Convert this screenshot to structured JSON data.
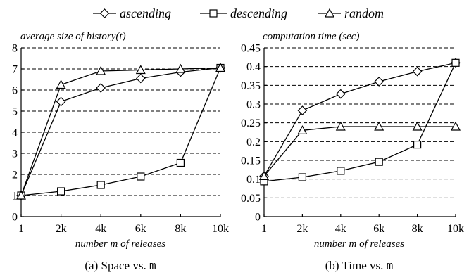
{
  "legend": [
    {
      "name": "ascending",
      "marker": "diamond"
    },
    {
      "name": "descending",
      "marker": "square"
    },
    {
      "name": "random",
      "marker": "triangle"
    }
  ],
  "chart_data": [
    {
      "type": "line",
      "caption_prefix": "(a) Space vs. ",
      "caption_var": "m",
      "ylabel_prefix": "average size of history(",
      "ylabel_var": "t",
      "ylabel_suffix": ")",
      "xlabel": "number m of releases",
      "categories": [
        "1",
        "2k",
        "4k",
        "6k",
        "8k",
        "10k"
      ],
      "ylim": [
        0,
        8
      ],
      "yticks": [
        "0",
        "1",
        "2",
        "3",
        "4",
        "5",
        "6",
        "7",
        "8"
      ],
      "series": [
        {
          "name": "ascending",
          "marker": "diamond",
          "values": [
            1.0,
            5.45,
            6.1,
            6.55,
            6.85,
            7.05
          ]
        },
        {
          "name": "descending",
          "marker": "square",
          "values": [
            1.0,
            1.2,
            1.5,
            1.9,
            2.55,
            7.05
          ]
        },
        {
          "name": "random",
          "marker": "triangle",
          "values": [
            1.0,
            6.25,
            6.9,
            6.95,
            7.0,
            7.05
          ]
        }
      ],
      "grid": true
    },
    {
      "type": "line",
      "caption_prefix": "(b) Time vs. ",
      "caption_var": "m",
      "ylabel": "computation time (sec)",
      "xlabel": "number m of releases",
      "categories": [
        "1",
        "2k",
        "4k",
        "6k",
        "8k",
        "10k"
      ],
      "ylim": [
        0,
        0.45
      ],
      "yticks": [
        "0",
        "0.05",
        "0.1",
        "0.15",
        "0.2",
        "0.25",
        "0.3",
        "0.35",
        "0.4",
        "0.45"
      ],
      "series": [
        {
          "name": "ascending",
          "marker": "diamond",
          "values": [
            0.108,
            0.283,
            0.327,
            0.36,
            0.387,
            0.41
          ]
        },
        {
          "name": "descending",
          "marker": "square",
          "values": [
            0.094,
            0.105,
            0.122,
            0.146,
            0.192,
            0.41
          ]
        },
        {
          "name": "random",
          "marker": "triangle",
          "values": [
            0.108,
            0.23,
            0.24,
            0.24,
            0.24,
            0.24
          ]
        }
      ],
      "grid": true
    }
  ]
}
